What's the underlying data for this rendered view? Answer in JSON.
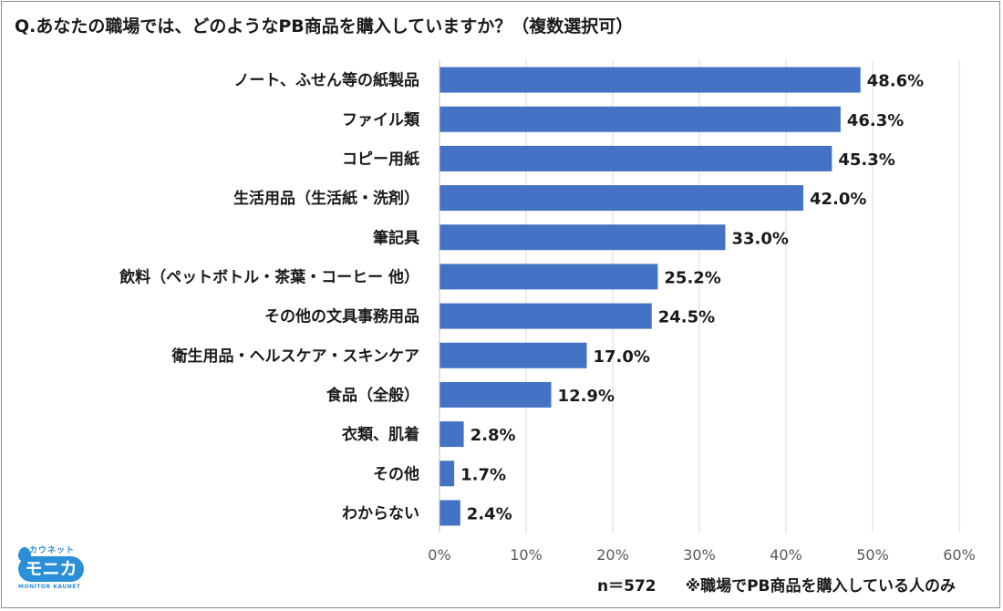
{
  "title": "Q.あなたの職場では、どのようなPB商品を購入していますか？（複数選択可）",
  "footnote": {
    "sample": "n＝572",
    "note": "※職場でPB商品を購入している人のみ"
  },
  "logo": {
    "top_text": "カウネット",
    "main_text": "モニカ",
    "sub_text": "MONITOR KAUNET"
  },
  "colors": {
    "bar": "#4472c4",
    "grid": "#d9d9d9",
    "text": "#1a1a1a"
  },
  "chart_data": {
    "type": "bar",
    "orientation": "horizontal",
    "categories": [
      "ノート、ふせん等の紙製品",
      "ファイル類",
      "コピー用紙",
      "生活用品（生活紙・洗剤）",
      "筆記具",
      "飲料（ペットボトル・茶葉・コーヒー 他）",
      "その他の文具事務用品",
      "衛生用品・ヘルスケア・スキンケア",
      "食品（全般）",
      "衣類、肌着",
      "その他",
      "わからない"
    ],
    "values": [
      48.6,
      46.3,
      45.3,
      42.0,
      33.0,
      25.2,
      24.5,
      17.0,
      12.9,
      2.8,
      1.7,
      2.4
    ],
    "data_labels": [
      "48.6%",
      "46.3%",
      "45.3%",
      "42.0%",
      "33.0%",
      "25.2%",
      "24.5%",
      "17.0%",
      "12.9%",
      "2.8%",
      "1.7%",
      "2.4%"
    ],
    "xlim": [
      0,
      60
    ],
    "xticks": [
      "0%",
      "10%",
      "20%",
      "30%",
      "40%",
      "50%",
      "60%"
    ],
    "grid": "vertical",
    "legend": "none"
  }
}
